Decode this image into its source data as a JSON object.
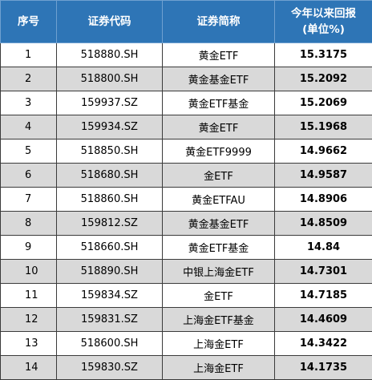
{
  "header": {
    "rank": "序号",
    "code": "证券代码",
    "name": "证券简称",
    "return_line1": "今年以来回报",
    "return_line2": "(单位%)"
  },
  "rows": [
    {
      "rank": "1",
      "code": "518880.SH",
      "name": "黄金ETF",
      "ret": "15.3175"
    },
    {
      "rank": "2",
      "code": "518800.SH",
      "name": "黄金基金ETF",
      "ret": "15.2092"
    },
    {
      "rank": "3",
      "code": "159937.SZ",
      "name": "黄金ETF基金",
      "ret": "15.2069"
    },
    {
      "rank": "4",
      "code": "159934.SZ",
      "name": "黄金ETF",
      "ret": "15.1968"
    },
    {
      "rank": "5",
      "code": "518850.SH",
      "name": "黄金ETF9999",
      "ret": "14.9662"
    },
    {
      "rank": "6",
      "code": "518680.SH",
      "name": "金ETF",
      "ret": "14.9587"
    },
    {
      "rank": "7",
      "code": "518860.SH",
      "name": "黄金ETFAU",
      "ret": "14.8906"
    },
    {
      "rank": "8",
      "code": "159812.SZ",
      "name": "黄金基金ETF",
      "ret": "14.8509"
    },
    {
      "rank": "9",
      "code": "518660.SH",
      "name": "黄金ETF基金",
      "ret": "14.84"
    },
    {
      "rank": "10",
      "code": "518890.SH",
      "name": "中银上海金ETF",
      "ret": "14.7301"
    },
    {
      "rank": "11",
      "code": "159834.SZ",
      "name": "金ETF",
      "ret": "14.7185"
    },
    {
      "rank": "12",
      "code": "159831.SZ",
      "name": "上海金ETF基金",
      "ret": "14.4609"
    },
    {
      "rank": "13",
      "code": "518600.SH",
      "name": "上海金ETF",
      "ret": "14.3422"
    },
    {
      "rank": "14",
      "code": "159830.SZ",
      "name": "上海金ETF",
      "ret": "14.1735"
    }
  ]
}
